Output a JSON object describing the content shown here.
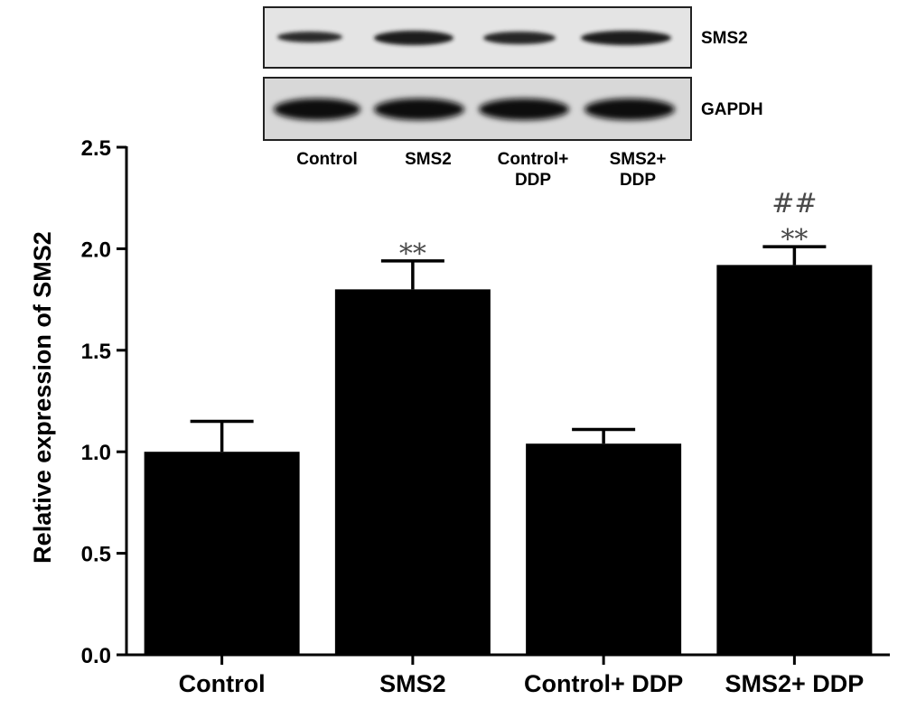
{
  "chart_data": {
    "type": "bar",
    "title": "",
    "xlabel": "",
    "ylabel": "Relative expression of SMS2",
    "ylim": [
      0,
      2.5
    ],
    "yticks": [
      "0.0",
      "0.5",
      "1.0",
      "1.5",
      "2.0",
      "2.5"
    ],
    "grid": false,
    "legend": "none",
    "bar_color": "#000000",
    "categories": [
      "Control",
      "SMS2",
      "Control+ DDP",
      "SMS2+ DDP"
    ],
    "values": [
      1.0,
      1.8,
      1.04,
      1.92
    ],
    "errors": [
      0.15,
      0.14,
      0.07,
      0.09
    ],
    "significance": [
      {
        "category": "SMS2",
        "marks": [
          "**"
        ]
      },
      {
        "category": "SMS2+ DDP",
        "marks": [
          "##",
          "**"
        ]
      }
    ]
  },
  "western_blot": {
    "bands": [
      "SMS2",
      "GAPDH"
    ],
    "lanes": [
      {
        "lines": [
          "Control"
        ]
      },
      {
        "lines": [
          "SMS2"
        ]
      },
      {
        "lines": [
          "Control+",
          "DDP"
        ]
      },
      {
        "lines": [
          "SMS2+",
          "DDP"
        ]
      }
    ]
  }
}
